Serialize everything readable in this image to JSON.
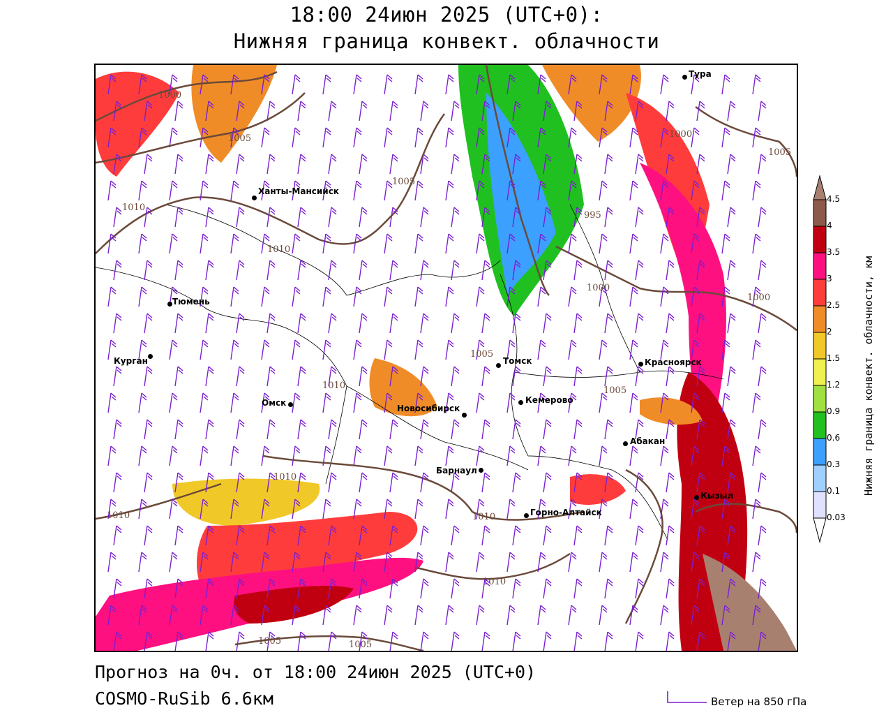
{
  "title_line1": "18:00 24июн 2025 (UTC+0):",
  "title_line2": "Нижняя граница конвект. облачности",
  "footer_line1": "Прогноз на 0ч. от 18:00 24июн 2025 (UTC+0)",
  "footer_line2": "COSMO-RuSib 6.6км",
  "wind_legend": "Ветер на 850 гПа",
  "legend": {
    "title": "Нижняя граница конвект. облачности, км",
    "levels": [
      "4.5",
      "4",
      "3.5",
      "3",
      "2.5",
      "2",
      "1.5",
      "1.2",
      "0.9",
      "0.6",
      "0.3",
      "0.1",
      "0.03"
    ],
    "colors": [
      "#a88070",
      "#8b5a4a",
      "#c00010",
      "#ff1080",
      "#ff3c3c",
      "#f08c28",
      "#f0c828",
      "#f0f050",
      "#a0e040",
      "#20c020",
      "#3ca0ff",
      "#a0d0ff",
      "#e0e0ff"
    ]
  },
  "cities": [
    {
      "name": "Тура"
    },
    {
      "name": "Ханты-Мансийск"
    },
    {
      "name": "Тюмень"
    },
    {
      "name": "Курган"
    },
    {
      "name": "Омск"
    },
    {
      "name": "Новосибирск"
    },
    {
      "name": "Томск"
    },
    {
      "name": "Кемерово"
    },
    {
      "name": "Красноярск"
    },
    {
      "name": "Абакан"
    },
    {
      "name": "Барнаул"
    },
    {
      "name": "Горно-Алтайск"
    },
    {
      "name": "Кызыл"
    }
  ],
  "isobar_labels": [
    "1000",
    "1005",
    "1010",
    "995",
    "1000",
    "1005",
    "1000",
    "1010",
    "1005",
    "1010",
    "1005",
    "1010",
    "1010",
    "1010",
    "1005",
    "1005",
    "1010",
    "1005",
    "1000"
  ]
}
